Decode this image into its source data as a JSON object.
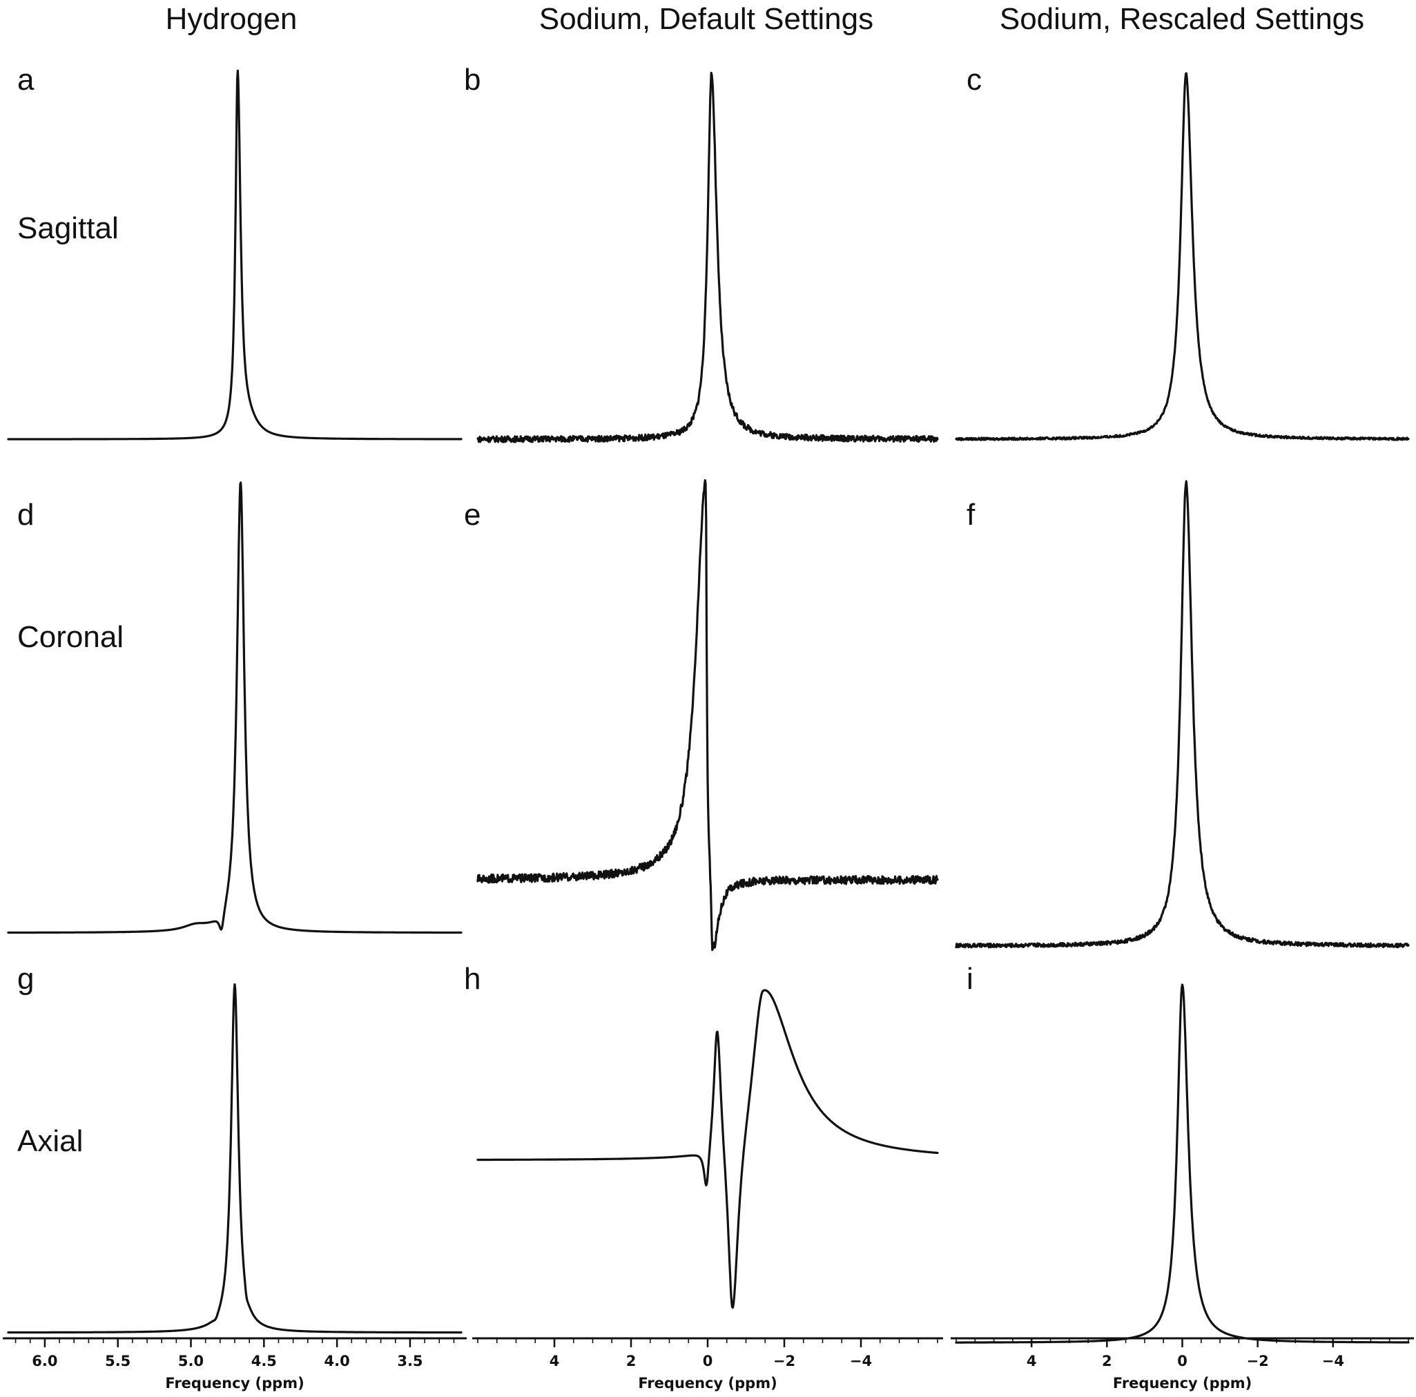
{
  "column_titles": [
    "Hydrogen",
    "Sodium, Default Settings",
    "Sodium, Rescaled Settings"
  ],
  "row_labels": [
    "Sagittal",
    "Coronal",
    "Axial"
  ],
  "panel_letters": [
    "a",
    "b",
    "c",
    "d",
    "e",
    "f",
    "g",
    "h",
    "i"
  ],
  "chart_data": [
    {
      "panel": "a",
      "type": "line",
      "row": "Sagittal",
      "column": "Hydrogen",
      "xlim": [
        6.25,
        3.15
      ],
      "ylim": [
        -0.03,
        1.05
      ],
      "peaks": [
        {
          "x": 4.68,
          "amp": 1.0,
          "wl": 0.018,
          "wr": 0.024,
          "shape": "absorption"
        },
        {
          "x": 4.6,
          "amp": 0.03,
          "wl": 0.05,
          "wr": 0.08,
          "shape": "absorption"
        }
      ],
      "noise": 0
    },
    {
      "panel": "b",
      "type": "line",
      "row": "Sagittal",
      "column": "Sodium, Default Settings",
      "xlim": [
        6.0,
        -6.0
      ],
      "ylim": [
        -0.03,
        1.05
      ],
      "peaks": [
        {
          "x": -0.1,
          "amp": 1.0,
          "wl": 0.12,
          "wr": 0.17,
          "shape": "absorption"
        }
      ],
      "noise": 0.008
    },
    {
      "panel": "c",
      "type": "line",
      "row": "Sagittal",
      "column": "Sodium, Rescaled Settings",
      "xlim": [
        6.0,
        -6.0
      ],
      "ylim": [
        -0.03,
        1.05
      ],
      "peaks": [
        {
          "x": -0.1,
          "amp": 1.0,
          "wl": 0.17,
          "wr": 0.2,
          "shape": "absorption"
        }
      ],
      "noise": 0.003
    },
    {
      "panel": "d",
      "type": "line",
      "row": "Coronal",
      "column": "Hydrogen",
      "xlim": [
        6.25,
        3.15
      ],
      "ylim": [
        -0.06,
        1.05
      ],
      "peaks": [
        {
          "x": 4.66,
          "amp": 1.0,
          "wl": 0.03,
          "wr": 0.03,
          "shape": "absorption"
        },
        {
          "x": 4.79,
          "amp": 0.045,
          "wl": 0.02,
          "wr": 0.02,
          "shape": "dip"
        },
        {
          "x": 4.97,
          "amp": 0.012,
          "wl": 0.1,
          "wr": 0.1,
          "shape": "absorption"
        }
      ],
      "noise": 0
    },
    {
      "panel": "e",
      "type": "line",
      "row": "Coronal",
      "column": "Sodium, Default Settings",
      "xlim": [
        6.0,
        -6.0
      ],
      "ylim": [
        -0.2,
        1.05
      ],
      "peaks": [
        {
          "x": 0.05,
          "amp": 1.0,
          "wl": 0.3,
          "wr": 0.03,
          "shape": "absorption"
        },
        {
          "x": -0.12,
          "amp": 0.2,
          "wl": 0.03,
          "wr": 0.18,
          "shape": "dip"
        }
      ],
      "noise": 0.01
    },
    {
      "panel": "f",
      "type": "line",
      "row": "Coronal",
      "column": "Sodium, Rescaled Settings",
      "xlim": [
        6.0,
        -6.0
      ],
      "ylim": [
        -0.03,
        1.05
      ],
      "peaks": [
        {
          "x": -0.1,
          "amp": 1.0,
          "wl": 0.17,
          "wr": 0.2,
          "shape": "absorption"
        }
      ],
      "noise": 0.004
    },
    {
      "panel": "g",
      "type": "line",
      "row": "Axial",
      "column": "Hydrogen",
      "xlim": [
        6.25,
        3.15
      ],
      "ylim": [
        -0.06,
        1.05
      ],
      "peaks": [
        {
          "x": 4.7,
          "amp": 1.0,
          "wl": 0.03,
          "wr": 0.03,
          "shape": "absorption"
        },
        {
          "x": 4.62,
          "amp": 0.02,
          "wl": 0.01,
          "wr": 0.015,
          "shape": "dip"
        },
        {
          "x": 4.83,
          "amp": 0.011,
          "wl": 0.02,
          "wr": 0.02,
          "shape": "dip"
        }
      ],
      "noise": 0
    },
    {
      "panel": "h",
      "type": "line",
      "row": "Axial",
      "column": "Sodium, Default Settings",
      "xlim": [
        6.0,
        -6.0
      ],
      "ylim": [
        -0.6,
        0.6
      ],
      "peaks": [
        {
          "x": 0.03,
          "amp": 0.14,
          "wl": 0.08,
          "wr": 0.08,
          "shape": "dip"
        },
        {
          "x": -0.25,
          "amp": 0.43,
          "wl": 0.11,
          "wr": 0.12,
          "shape": "absorption"
        },
        {
          "x": -0.65,
          "amp": 0.58,
          "wl": 0.14,
          "wr": 0.18,
          "shape": "dip"
        },
        {
          "x": -1.45,
          "amp": 0.55,
          "wl": 0.35,
          "wr": 0.95,
          "shape": "absorption"
        }
      ],
      "noise": 0
    },
    {
      "panel": "i",
      "type": "line",
      "row": "Axial",
      "column": "Sodium, Rescaled Settings",
      "xlim": [
        6.0,
        -6.0
      ],
      "ylim": [
        -0.03,
        1.05
      ],
      "peaks": [
        {
          "x": 0.0,
          "amp": 1.0,
          "wl": 0.16,
          "wr": 0.19,
          "shape": "absorption"
        }
      ],
      "noise": 0
    }
  ],
  "x_axes": [
    {
      "column": "Hydrogen",
      "xlim": [
        6.25,
        3.15
      ],
      "major_ticks": [
        6.0,
        5.5,
        5.0,
        4.5,
        4.0,
        3.5
      ],
      "tick_labels": [
        "6.0",
        "5.5",
        "5.0",
        "4.5",
        "4.0",
        "3.5"
      ],
      "minor_step": 0.1,
      "xlabel": "Frequency (ppm)"
    },
    {
      "column": "Sodium, Default Settings",
      "xlim": [
        6.0,
        -6.0
      ],
      "major_ticks": [
        4,
        2,
        0,
        -2,
        -4
      ],
      "tick_labels": [
        "4",
        "2",
        "0",
        "−2",
        "−4"
      ],
      "minor_step": 0.5,
      "xlabel": "Frequency (ppm)"
    },
    {
      "column": "Sodium, Rescaled Settings",
      "xlim": [
        6.0,
        -6.0
      ],
      "major_ticks": [
        4,
        2,
        0,
        -2,
        -4
      ],
      "tick_labels": [
        "4",
        "2",
        "0",
        "−2",
        "−4"
      ],
      "minor_step": 0.5,
      "xlabel": "Frequency (ppm)"
    }
  ]
}
